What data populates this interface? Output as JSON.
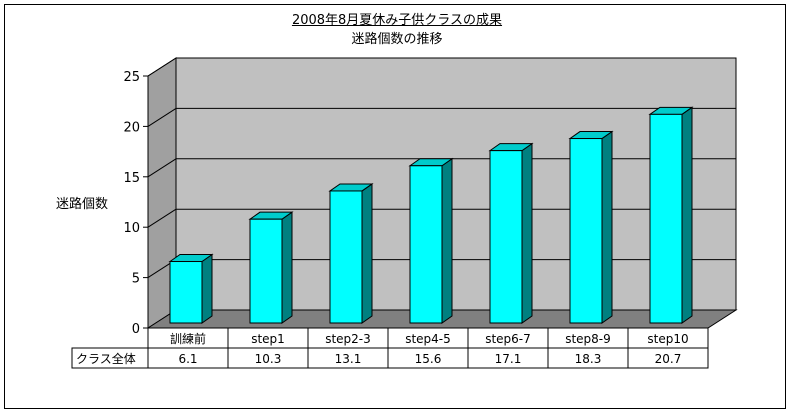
{
  "chart_data": {
    "type": "bar",
    "title": "2008年8月夏休み子供クラスの成果",
    "subtitle": "迷路個数の推移",
    "ylabel": "迷路個数",
    "xlabel": "",
    "categories": [
      "訓練前",
      "step1",
      "step2-3",
      "step4-5",
      "step6-7",
      "step8-9",
      "step10"
    ],
    "series": [
      {
        "name": "クラス全体",
        "values": [
          6.1,
          10.3,
          13.1,
          15.6,
          17.1,
          18.3,
          20.7
        ]
      }
    ],
    "value_labels": [
      "6.1",
      "10.3",
      "13.1",
      "15.6",
      "17.1",
      "18.3",
      "20.7"
    ],
    "ylim": [
      0,
      25
    ],
    "yticks": [
      0,
      5,
      10,
      15,
      20,
      25
    ],
    "ytick_labels": [
      "0",
      "5",
      "10",
      "15",
      "20",
      "25"
    ],
    "grid": true,
    "data_table": true,
    "style": "3d",
    "colors": {
      "bar_front": "#00ffff",
      "bar_top": "#00cccc",
      "bar_side": "#008080",
      "back_wall": "#c0c0c0",
      "side_wall": "#a0a0a0",
      "floor": "#808080"
    }
  }
}
